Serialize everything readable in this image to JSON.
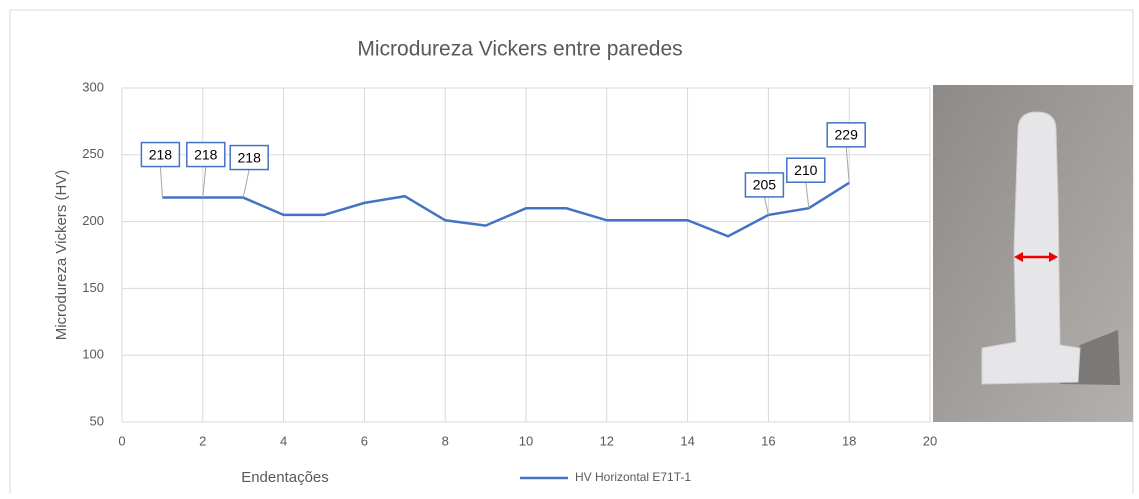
{
  "chart_data": {
    "type": "line",
    "title": "Microdureza Vickers entre paredes",
    "x_label": "Endentações",
    "y_label": "Microdureza Vickers (HV)",
    "x": [
      1,
      2,
      3,
      4,
      5,
      6,
      7,
      8,
      9,
      10,
      11,
      12,
      13,
      14,
      15,
      16,
      17,
      18
    ],
    "series": [
      {
        "name": "HV Horizontal E71T-1",
        "color": "#4472c4",
        "values": [
          218,
          218,
          218,
          205,
          205,
          214,
          219,
          201,
          197,
          210,
          210,
          201,
          201,
          201,
          189,
          205,
          210,
          229
        ],
        "value_labels": [
          "218",
          "218",
          "218",
          null,
          null,
          null,
          null,
          null,
          null,
          null,
          null,
          null,
          null,
          null,
          null,
          "205",
          "210",
          "229"
        ]
      }
    ],
    "xlim": [
      0,
      20
    ],
    "xticks": [
      0,
      2,
      4,
      6,
      8,
      10,
      12,
      14,
      16,
      18,
      20
    ],
    "ylim": [
      50,
      300
    ],
    "yticks": [
      50,
      100,
      150,
      200,
      250,
      300
    ],
    "grid": true,
    "legend": "bottom"
  }
}
